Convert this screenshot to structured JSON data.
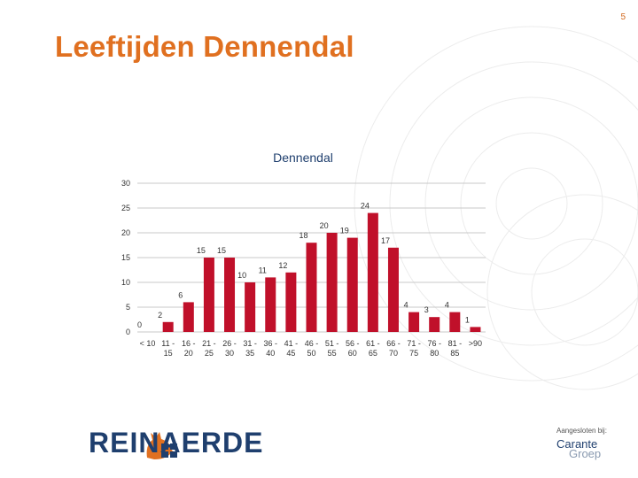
{
  "page": {
    "number": "5",
    "title": "Leeftijden Dennendal"
  },
  "logo": {
    "text": "REINAERDE"
  },
  "affiliation": {
    "label": "Aangesloten bij:",
    "brand_line1": "Carante",
    "brand_line2": "Groep"
  },
  "colors": {
    "accent": "#e07020",
    "bar": "#c0102a",
    "brand": "#1f3f6e"
  },
  "chart_data": {
    "type": "bar",
    "title": "Dennendal",
    "categories": [
      "< 10",
      "11 - 15",
      "16 - 20",
      "21 - 25",
      "26 - 30",
      "31 - 35",
      "36 - 40",
      "41 - 45",
      "46 - 50",
      "51 - 55",
      "56 - 60",
      "61 - 65",
      "66 - 70",
      "71 - 75",
      "76 - 80",
      "81 - 85",
      ">90"
    ],
    "category_lines": [
      [
        "< 10",
        ""
      ],
      [
        "11 -",
        "15"
      ],
      [
        "16 -",
        "20"
      ],
      [
        "21 -",
        "25"
      ],
      [
        "26 -",
        "30"
      ],
      [
        "31 -",
        "35"
      ],
      [
        "36 -",
        "40"
      ],
      [
        "41 -",
        "45"
      ],
      [
        "46 -",
        "50"
      ],
      [
        "51 -",
        "55"
      ],
      [
        "56 -",
        "60"
      ],
      [
        "61 -",
        "65"
      ],
      [
        "66 -",
        "70"
      ],
      [
        "71 -",
        "75"
      ],
      [
        "76 -",
        "80"
      ],
      [
        "81 -",
        "85"
      ],
      [
        ">90",
        ""
      ]
    ],
    "values": [
      0,
      2,
      6,
      15,
      15,
      10,
      11,
      12,
      18,
      20,
      19,
      24,
      17,
      4,
      3,
      4,
      1
    ],
    "ylim": [
      0,
      30
    ],
    "yticks": [
      0,
      5,
      10,
      15,
      20,
      25,
      30
    ],
    "grid": true,
    "xlabel": "",
    "ylabel": ""
  }
}
